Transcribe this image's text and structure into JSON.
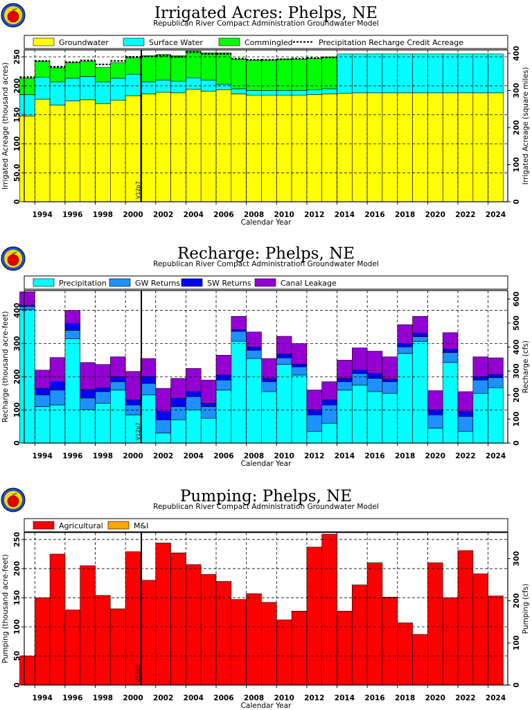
{
  "chart_data": [
    {
      "type": "bar",
      "stacked": true,
      "title": "Irrigated  Acres:  Phelps,  NE",
      "subtitle": "Republican  River  Compact  Administration  Groundwater  Model",
      "xlabel": "Calendar  Year",
      "ylabel": "Irrigated  Acreage  (thousand  acres)",
      "ylabel_right": "Irrigated  Acreage  (square  miles)",
      "xlim": [
        1992.8,
        2024.8
      ],
      "ylim": [
        0,
        262
      ],
      "ylim_right": [
        0,
        409.4
      ],
      "yticks": [
        "0",
        "50.0",
        "100",
        "150",
        "200",
        "250"
      ],
      "yticks_right": [
        "0",
        "100",
        "200",
        "300",
        "400"
      ],
      "xticks": [
        "1994",
        "1996",
        "1998",
        "2000",
        "2002",
        "2004",
        "2006",
        "2008",
        "2010",
        "2012",
        "2014",
        "2016",
        "2018",
        "2020",
        "2022",
        "2024"
      ],
      "grid": true,
      "legend_position": "top",
      "annotation": "V12p7",
      "annotation_x": 2000.55,
      "categories": [
        1993,
        1994,
        1995,
        1996,
        1997,
        1998,
        1999,
        2000,
        2001,
        2002,
        2003,
        2004,
        2005,
        2006,
        2007,
        2008,
        2009,
        2010,
        2011,
        2012,
        2013,
        2014,
        2015,
        2016,
        2017,
        2018,
        2019,
        2020,
        2021,
        2022,
        2023,
        2024
      ],
      "series": [
        {
          "name": "Groundwater",
          "color": "#ffff00",
          "values": [
            148,
            177,
            167,
            174,
            176,
            169,
            175,
            183,
            186,
            189,
            188,
            194,
            191,
            193,
            186,
            184,
            184,
            184,
            184,
            185,
            186,
            187,
            188,
            188,
            188,
            188,
            188,
            188,
            188,
            188,
            188,
            188
          ]
        },
        {
          "name": "Surface  Water",
          "color": "#00ffff",
          "values": [
            37,
            38,
            40,
            39,
            40,
            38,
            38,
            37,
            21,
            21,
            20,
            20,
            19,
            10,
            9,
            8,
            8,
            8,
            8,
            8,
            9,
            68,
            67,
            67,
            67,
            67,
            67,
            67,
            67,
            67,
            67,
            67
          ]
        },
        {
          "name": "Commingled",
          "color": "#00ff00",
          "values": [
            28,
            27,
            24,
            27,
            26,
            25,
            27,
            28,
            45,
            44,
            44,
            46,
            47,
            54,
            51,
            52,
            52,
            54,
            54,
            54,
            55,
            0,
            0,
            0,
            0,
            0,
            0,
            0,
            0,
            0,
            0,
            0
          ]
        },
        {
          "name": "Precipitation  Recharge  Credit  Acreage",
          "style": "dashed-line",
          "values": [
            215,
            243,
            233,
            241,
            244,
            237,
            243,
            250,
            251,
            252,
            250,
            258,
            255,
            255,
            247,
            245,
            245,
            246,
            247,
            248,
            249,
            0,
            0,
            0,
            0,
            0,
            0,
            0,
            0,
            0,
            0,
            0
          ]
        }
      ]
    },
    {
      "type": "bar",
      "stacked": true,
      "title": "Recharge:  Phelps,  NE",
      "subtitle": "Republican  River  Compact  Administration  Groundwater  Model",
      "xlabel": "Calendar  Year",
      "ylabel": "Recharge  (thousand  acre-feet)",
      "ylabel_right": "Recharge  (cfs)",
      "xlim": [
        1992.8,
        2024.8
      ],
      "ylim": [
        0,
        460
      ],
      "ylim_right": [
        0,
        635.4
      ],
      "yticks": [
        "0",
        "100",
        "200",
        "300",
        "400"
      ],
      "yticks_right": [
        "0",
        "100",
        "200",
        "300",
        "400",
        "500",
        "600"
      ],
      "xticks": [
        "1994",
        "1996",
        "1998",
        "2000",
        "2002",
        "2004",
        "2006",
        "2008",
        "2010",
        "2012",
        "2014",
        "2016",
        "2018",
        "2020",
        "2022",
        "2024"
      ],
      "grid": true,
      "legend_position": "top",
      "annotation": "V12p7",
      "annotation_x": 2000.55,
      "categories": [
        1993,
        1994,
        1995,
        1996,
        1997,
        1998,
        1999,
        2000,
        2001,
        2002,
        2003,
        2004,
        2005,
        2006,
        2007,
        2008,
        2009,
        2010,
        2011,
        2012,
        2013,
        2014,
        2015,
        2016,
        2017,
        2018,
        2019,
        2020,
        2021,
        2022,
        2023,
        2024
      ],
      "series": [
        {
          "name": "GW  Returns",
          "color": "#1e90ff",
          "values": [
            10,
            35,
            45,
            25,
            35,
            35,
            25,
            30,
            35,
            40,
            40,
            40,
            35,
            30,
            30,
            25,
            30,
            20,
            25,
            50,
            55,
            25,
            35,
            40,
            35,
            20,
            15,
            40,
            30,
            45,
            40,
            30
          ]
        },
        {
          "name": "SW  Returns",
          "color": "#0000ff",
          "values": [
            4,
            20,
            25,
            20,
            25,
            12,
            15,
            15,
            20,
            25,
            25,
            15,
            10,
            15,
            5,
            10,
            10,
            12,
            8,
            15,
            15,
            10,
            10,
            15,
            8,
            10,
            10,
            15,
            10,
            15,
            10,
            10
          ]
        },
        {
          "name": "Canal  Leakage",
          "color": "#9400d3",
          "values": [
            40,
            55,
            73,
            40,
            82,
            70,
            60,
            86,
            55,
            70,
            60,
            70,
            70,
            60,
            40,
            45,
            60,
            53,
            62,
            60,
            55,
            55,
            67,
            67,
            67,
            57,
            51,
            58,
            50,
            60,
            60,
            50
          ]
        },
        {
          "name": "Precipitation",
          "color": "#00ffff",
          "values": [
            402,
            110,
            115,
            315,
            101,
            120,
            160,
            85,
            145,
            30,
            70,
            100,
            75,
            160,
            307,
            255,
            155,
            237,
            205,
            35,
            60,
            160,
            175,
            155,
            150,
            270,
            306,
            45,
            243,
            35,
            150,
            167
          ]
        }
      ]
    },
    {
      "type": "bar",
      "stacked": true,
      "title": "Pumping:  Phelps,  NE",
      "subtitle": "Republican  River  Compact  Administration  Groundwater  Model",
      "xlabel": "Calendar  Year",
      "ylabel": "Pumping  (thousand  acre-feet)",
      "ylabel_right": "Pumping  (cfs)",
      "xlim": [
        1992.8,
        2024.8
      ],
      "ylim": [
        0,
        262
      ],
      "ylim_right": [
        0,
        361.9
      ],
      "yticks": [
        "0",
        "50",
        "100",
        "150",
        "200",
        "250"
      ],
      "yticks_right": [
        "0",
        "100",
        "200",
        "300"
      ],
      "xticks": [
        "1994",
        "1996",
        "1998",
        "2000",
        "2002",
        "2004",
        "2006",
        "2008",
        "2010",
        "2012",
        "2014",
        "2016",
        "2018",
        "2020",
        "2022",
        "2024"
      ],
      "grid": true,
      "legend_position": "top",
      "annotation": "V12p7",
      "annotation_x": 2000.55,
      "categories": [
        1993,
        1994,
        1995,
        1996,
        1997,
        1998,
        1999,
        2000,
        2001,
        2002,
        2003,
        2004,
        2005,
        2006,
        2007,
        2008,
        2009,
        2010,
        2011,
        2012,
        2013,
        2014,
        2015,
        2016,
        2017,
        2018,
        2019,
        2020,
        2021,
        2022,
        2023,
        2024
      ],
      "series": [
        {
          "name": "Agricultural",
          "color": "#ff0000",
          "values": [
            50,
            150,
            225,
            129,
            205,
            154,
            131,
            229,
            180,
            244,
            227,
            207,
            190,
            178,
            147,
            157,
            142,
            112,
            127,
            237,
            259,
            127,
            172,
            210,
            151,
            107,
            87,
            210,
            150,
            231,
            191,
            153
          ]
        },
        {
          "name": "M&I",
          "color": "#ffa500",
          "values": [
            0,
            0,
            0,
            0,
            0,
            0,
            0,
            0,
            0,
            0,
            0,
            0,
            0,
            0,
            0,
            0,
            0,
            0,
            0,
            0,
            0,
            0,
            0,
            0,
            0,
            0,
            0,
            0,
            0,
            0,
            0,
            0
          ]
        }
      ]
    }
  ]
}
